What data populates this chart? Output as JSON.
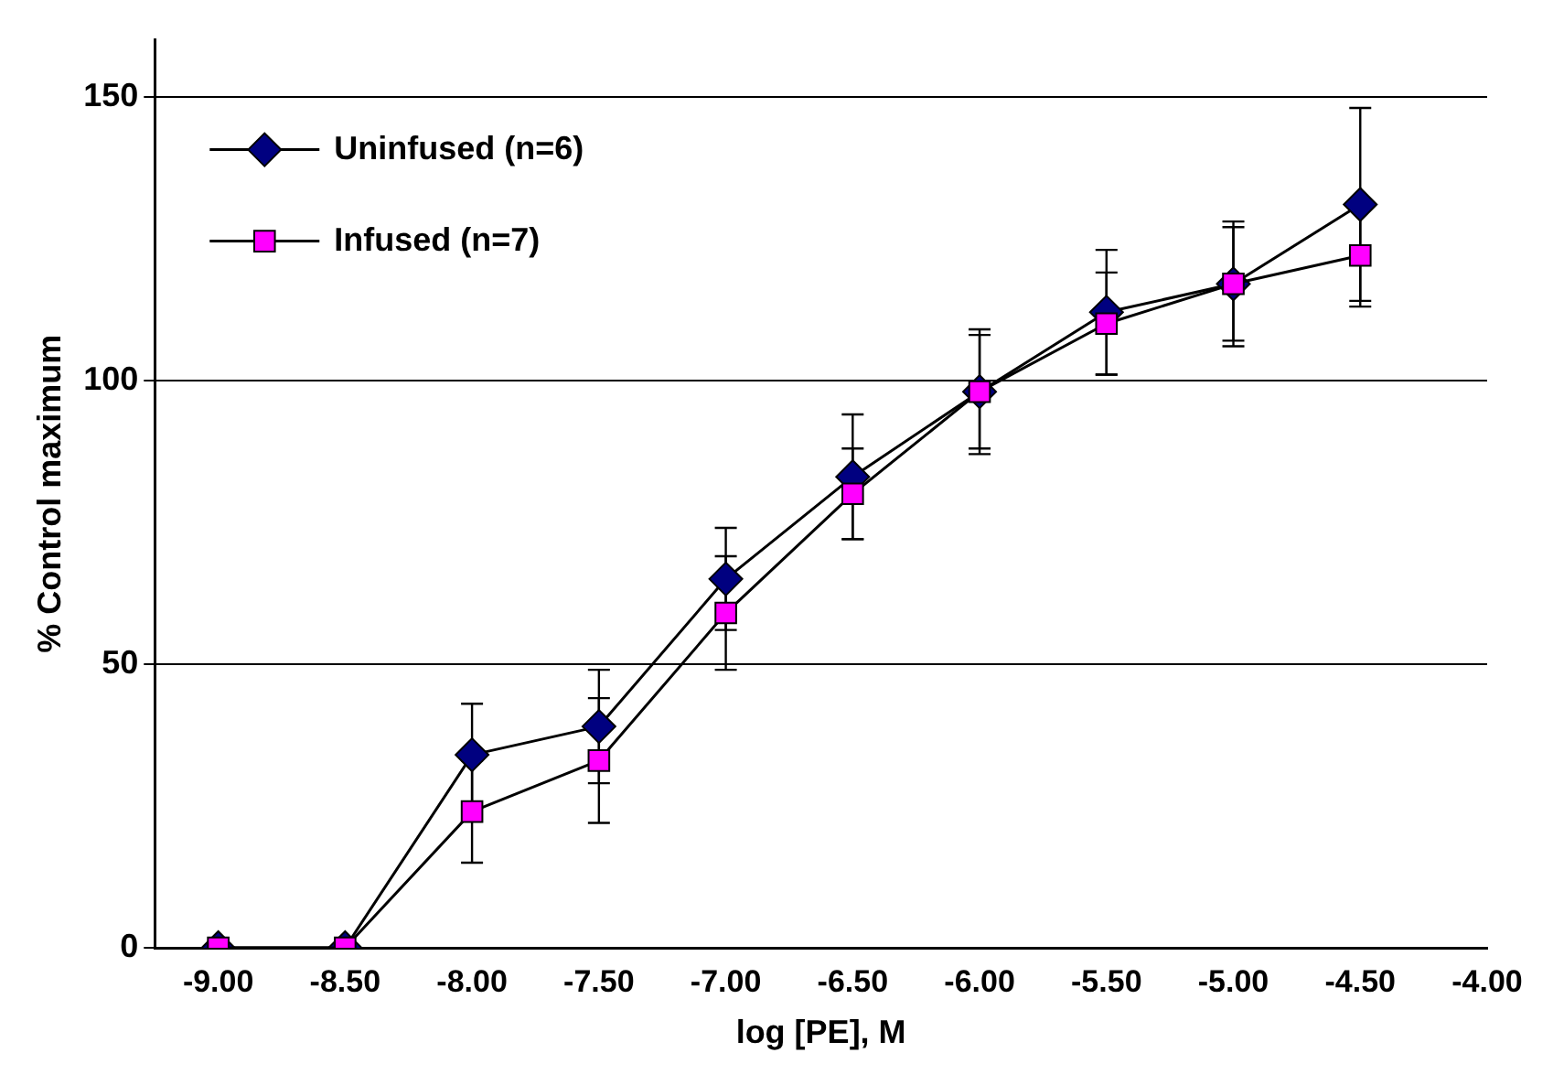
{
  "chart_data": {
    "type": "line",
    "xlabel": "log [PE], M",
    "ylabel": "% Control maximum",
    "x": [
      -9,
      -8.5,
      -8,
      -7.5,
      -7,
      -6.5,
      -6,
      -5.5,
      -5,
      -4.5
    ],
    "series": [
      {
        "name": "Uninfused (n=6)",
        "color": "#000080",
        "marker": "diamond",
        "values": [
          0,
          0,
          34,
          39,
          65,
          83,
          98,
          112,
          117,
          131
        ],
        "errors": [
          null,
          null,
          9,
          10,
          9,
          11,
          11,
          11,
          10,
          17
        ]
      },
      {
        "name": "Infused (n=7)",
        "color": "#ff00ff",
        "marker": "square",
        "values": [
          0,
          0,
          24,
          33,
          59,
          80,
          98,
          110,
          117,
          122
        ],
        "errors": [
          null,
          null,
          9,
          11,
          10,
          8,
          10,
          9,
          11,
          9
        ]
      }
    ],
    "xlim": [
      -9.25,
      -4
    ],
    "xticks": [
      {
        "value": -9,
        "label": "-9.00"
      },
      {
        "value": -8.5,
        "label": "-8.50"
      },
      {
        "value": -8,
        "label": "-8.00"
      },
      {
        "value": -7.5,
        "label": "-7.50"
      },
      {
        "value": -7,
        "label": "-7.00"
      },
      {
        "value": -6.5,
        "label": "-6.50"
      },
      {
        "value": -6,
        "label": "-6.00"
      },
      {
        "value": -5.5,
        "label": "-5.50"
      },
      {
        "value": -5,
        "label": "-5.00"
      },
      {
        "value": -4.5,
        "label": "-4.50"
      },
      {
        "value": -4,
        "label": "-4.00"
      }
    ],
    "ylim": [
      0,
      160
    ],
    "yticks": [
      0,
      50,
      100,
      150
    ],
    "grid": "y",
    "legend": "top left",
    "line_style": "solid"
  }
}
